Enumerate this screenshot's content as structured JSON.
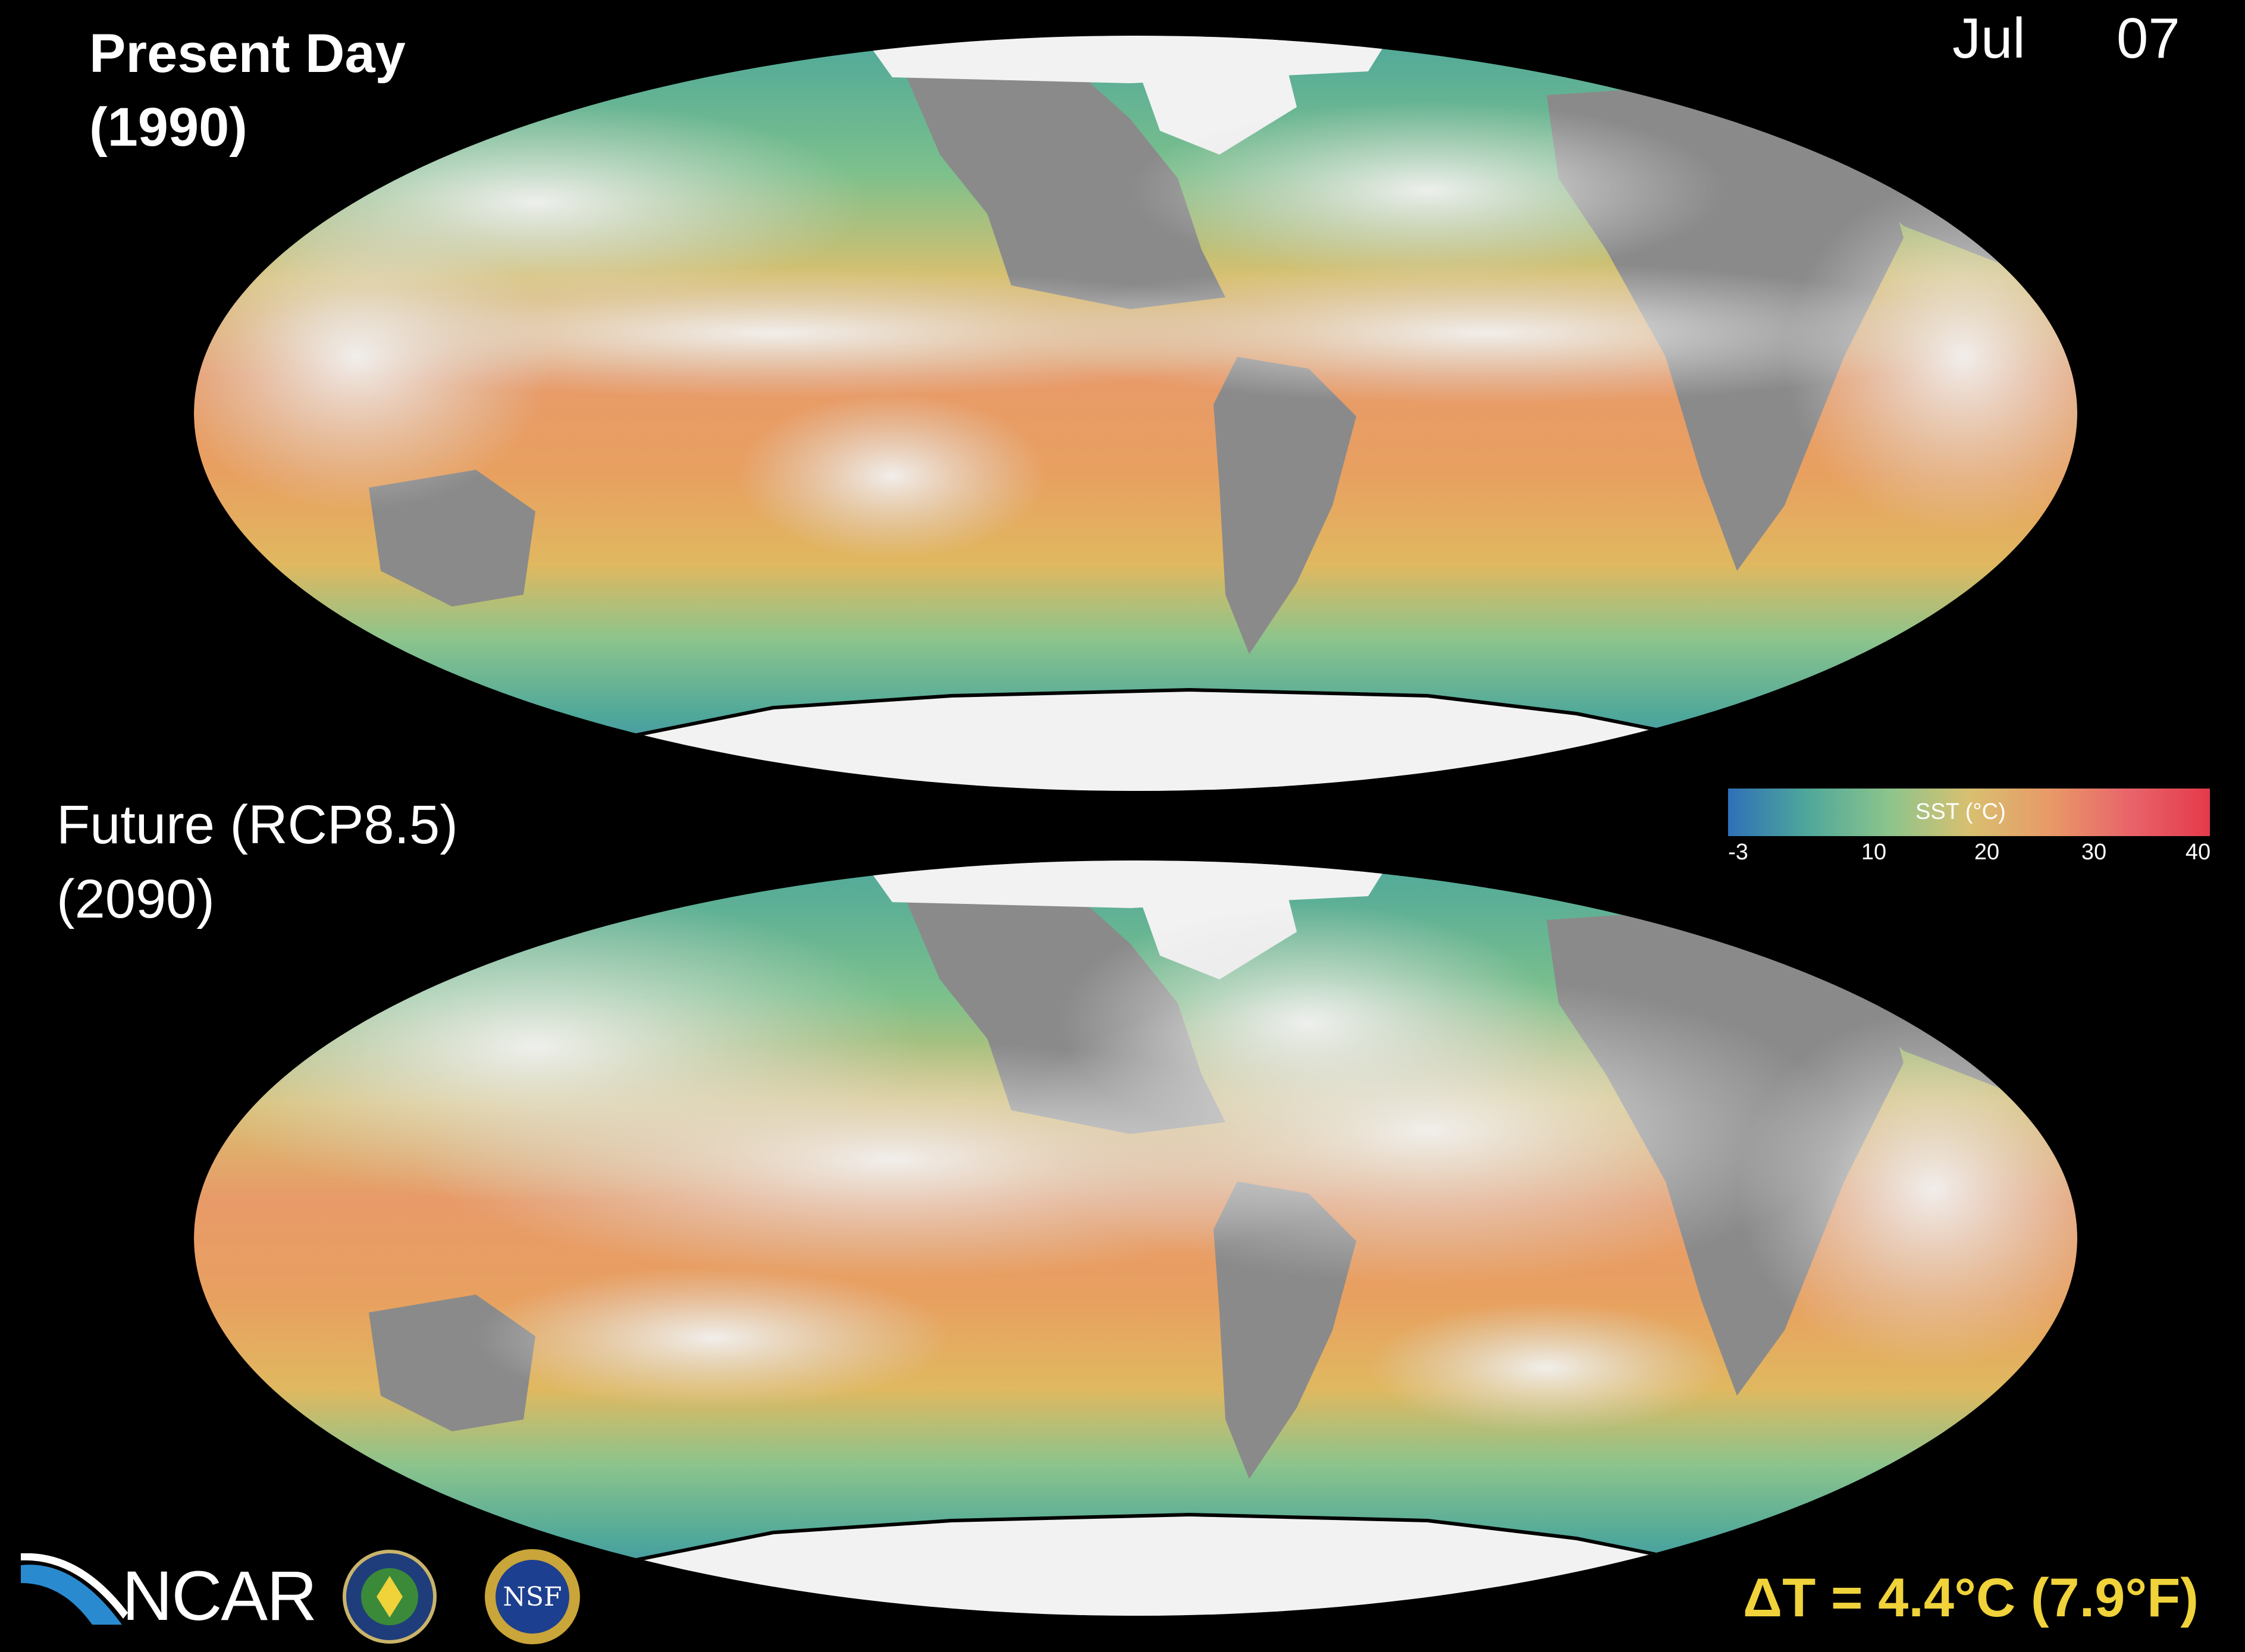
{
  "panels": [
    {
      "title": "Present Day",
      "subtitle": "(1990)"
    },
    {
      "title": "Future (RCP8.5)",
      "subtitle": "(2090)"
    }
  ],
  "date": {
    "month": "Jul",
    "day": "07"
  },
  "colorbar": {
    "label": "SST (°C)",
    "ticks": [
      "-3",
      "10",
      "20",
      "30",
      "40"
    ],
    "tick_values": [
      -3,
      10,
      20,
      30,
      40
    ],
    "range": [
      -3,
      40
    ],
    "colors": [
      "#2f70b8",
      "#4fa89a",
      "#8cc48c",
      "#d8c070",
      "#e89a68",
      "#e8646a",
      "#e53a4a"
    ]
  },
  "delta_text": "ΔT = 4.4°C (7.9°F)",
  "logos": {
    "ncar": "NCAR",
    "nsf": "NSF"
  },
  "colors": {
    "background": "#000000",
    "accent": "#f0d23a",
    "land": "#8a8a8a",
    "ice": "#f2f2f2",
    "cloud": "#e6e6e6"
  },
  "icons": [
    "ncar-logo-icon",
    "doe-seal-icon",
    "nsf-logo-icon"
  ]
}
